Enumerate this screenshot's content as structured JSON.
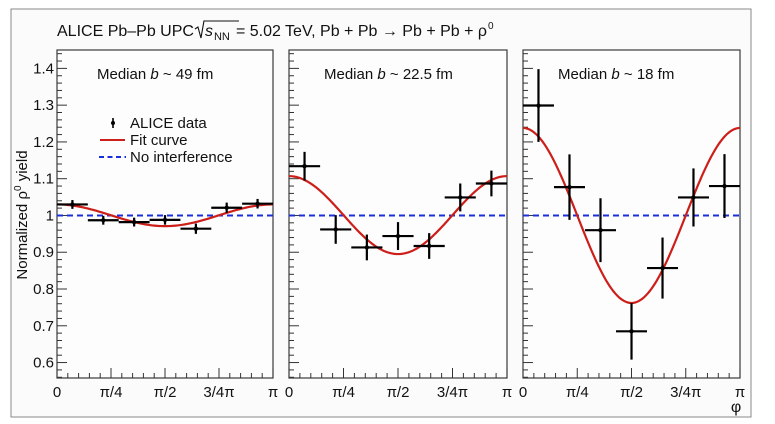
{
  "chart_data": {
    "type": "scatter",
    "title": "ALICE Pb–Pb UPC √s_NN = 5.02 TeV, Pb + Pb → Pb + Pb + ρ⁰",
    "title_parts": {
      "prefix": "ALICE Pb–Pb UPC ",
      "sqrt_s": "s",
      "sqrt_sub": "NN",
      "suffix": " = 5.02 TeV, Pb + Pb → Pb + Pb + ρ",
      "suffix_sup": "0"
    },
    "ylabel": "Normalized ρ⁰ yield",
    "ylabel_parts": {
      "main": "Normalized ρ",
      "sup": "0",
      "tail": " yield"
    },
    "xlabel": "φ",
    "ylim": [
      0.558,
      1.45
    ],
    "xlim": [
      0,
      3.14159
    ],
    "yticks": [
      0.6,
      0.7,
      0.8,
      0.9,
      1,
      1.1,
      1.2,
      1.3,
      1.4
    ],
    "ytick_labels": [
      "0.6",
      "0.7",
      "0.8",
      "0.9",
      "1",
      "1.1",
      "1.2",
      "1.3",
      "1.4"
    ],
    "xtick_labels": [
      "0",
      "π/4",
      "π/2",
      "3/4π",
      "π"
    ],
    "grid": false,
    "legend": {
      "placement": "top-left of first panel",
      "entries": [
        {
          "label": "ALICE data",
          "kind": "marker",
          "color": "#000000"
        },
        {
          "label": "Fit curve",
          "kind": "line",
          "color": "#cc1f1a"
        },
        {
          "label": "No interference",
          "kind": "dashed",
          "color": "#1a2fdc"
        }
      ]
    },
    "colors": {
      "data": "#000000",
      "fit": "#cc1f1a",
      "reference": "#1a2fdc"
    },
    "reference_line": 1.0,
    "n_bins": 7,
    "panels": [
      {
        "label": "Median b ~ 49 fm",
        "label_parts": {
          "pre": "Median ",
          "var": "b",
          "post": " ~ 49 fm"
        },
        "points": [
          {
            "x": 0.224,
            "y": 1.03,
            "err": 0.012
          },
          {
            "x": 0.673,
            "y": 0.987,
            "err": 0.012
          },
          {
            "x": 1.122,
            "y": 0.982,
            "err": 0.012
          },
          {
            "x": 1.571,
            "y": 0.988,
            "err": 0.013
          },
          {
            "x": 2.02,
            "y": 0.964,
            "err": 0.014
          },
          {
            "x": 2.468,
            "y": 1.021,
            "err": 0.014
          },
          {
            "x": 2.917,
            "y": 1.032,
            "err": 0.013
          }
        ],
        "fit": {
          "formula": "c + A*cos(2*phi)",
          "c": 1.0005,
          "A": 0.0295
        }
      },
      {
        "label": "Median b ~ 22.5 fm",
        "label_parts": {
          "pre": "Median ",
          "var": "b",
          "post": " ~ 22.5 fm"
        },
        "points": [
          {
            "x": 0.224,
            "y": 1.134,
            "err": 0.039
          },
          {
            "x": 0.673,
            "y": 0.962,
            "err": 0.039
          },
          {
            "x": 1.122,
            "y": 0.913,
            "err": 0.035
          },
          {
            "x": 1.571,
            "y": 0.944,
            "err": 0.038
          },
          {
            "x": 2.02,
            "y": 0.917,
            "err": 0.035
          },
          {
            "x": 2.468,
            "y": 1.049,
            "err": 0.038
          },
          {
            "x": 2.917,
            "y": 1.087,
            "err": 0.035
          }
        ],
        "fit": {
          "formula": "c + A*cos(2*phi)",
          "c": 1.001,
          "A": 0.106
        }
      },
      {
        "label": "Median b ~ 18 fm",
        "label_parts": {
          "pre": "Median ",
          "var": "b",
          "post": " ~ 18 fm"
        },
        "points": [
          {
            "x": 0.224,
            "y": 1.299,
            "err": 0.099
          },
          {
            "x": 0.673,
            "y": 1.077,
            "err": 0.089
          },
          {
            "x": 1.122,
            "y": 0.96,
            "err": 0.087
          },
          {
            "x": 1.571,
            "y": 0.685,
            "err": 0.077
          },
          {
            "x": 2.02,
            "y": 0.857,
            "err": 0.083
          },
          {
            "x": 2.468,
            "y": 1.049,
            "err": 0.079
          },
          {
            "x": 2.917,
            "y": 1.08,
            "err": 0.087
          }
        ],
        "fit": {
          "formula": "c + A*cos(2*phi)",
          "c": 1.0,
          "A": 0.238
        }
      }
    ]
  }
}
